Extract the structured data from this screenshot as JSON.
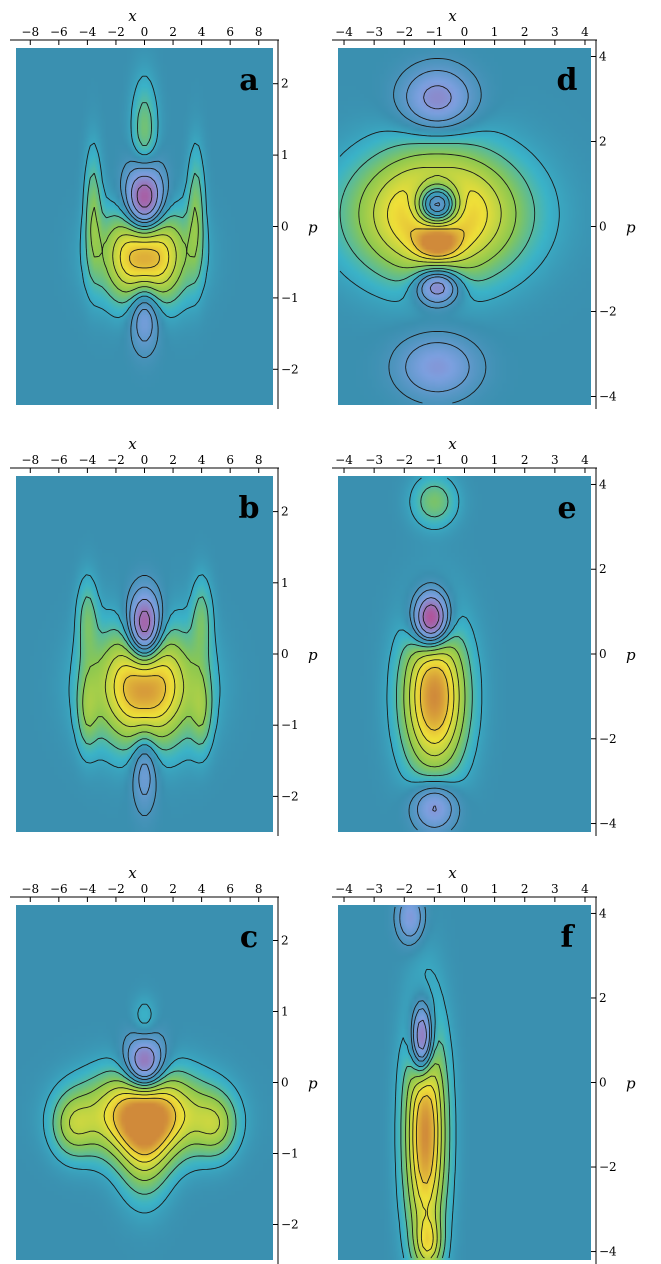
{
  "colors": {
    "background_field": "#3a90b0",
    "negative_field": "#7da0e0",
    "positive_low": "#3ab3c9",
    "positive_mid": "#8cc850",
    "positive_high": "#f0e038",
    "peak_orange": "#d08a3a",
    "negative_deep": "#c8307a",
    "contour": "#1a1a1a"
  },
  "chart_data": [
    {
      "panel": "a",
      "type": "heatmap",
      "xlabel": "x",
      "ylabel": "p",
      "xlim": [
        -9,
        9
      ],
      "ylim": [
        -2.5,
        2.5
      ],
      "xticks": [
        -8,
        -6,
        -4,
        -2,
        0,
        2,
        4,
        6,
        8
      ],
      "yticks": [
        -2,
        -1,
        0,
        1,
        2
      ],
      "y_axis_side": "right",
      "blobs": [
        {
          "x": 0,
          "p": -0.4,
          "sx": 1.9,
          "sp": 0.45,
          "w": 1.0
        },
        {
          "x": 0,
          "p": 0.35,
          "sx": 0.9,
          "sp": 0.35,
          "w": -1.0
        },
        {
          "x": 0,
          "p": -1.2,
          "sx": 0.7,
          "sp": 0.35,
          "w": -0.45
        },
        {
          "x": 0,
          "p": 1.3,
          "sx": 0.6,
          "sp": 0.5,
          "w": 0.3
        },
        {
          "x": -3.6,
          "p": 0.2,
          "sx": 0.4,
          "sp": 0.6,
          "w": 0.3
        },
        {
          "x": 3.6,
          "p": 0.2,
          "sx": 0.4,
          "sp": 0.6,
          "w": 0.3
        }
      ]
    },
    {
      "panel": "b",
      "type": "heatmap",
      "xlabel": "x",
      "ylabel": "p",
      "xlim": [
        -9,
        9
      ],
      "ylim": [
        -2.5,
        2.5
      ],
      "xticks": [
        -8,
        -6,
        -4,
        -2,
        0,
        2,
        4,
        6,
        8
      ],
      "yticks": [
        -2,
        -1,
        0,
        1,
        2
      ],
      "y_axis_side": "right",
      "blobs": [
        {
          "x": 0,
          "p": -0.45,
          "sx": 2.3,
          "sp": 0.55,
          "w": 1.0
        },
        {
          "x": 0,
          "p": 0.35,
          "sx": 0.8,
          "sp": 0.35,
          "w": -1.0
        },
        {
          "x": 0,
          "p": -1.6,
          "sx": 0.6,
          "sp": 0.4,
          "w": -0.35
        },
        {
          "x": -4,
          "p": 0.5,
          "sx": 0.5,
          "sp": 0.4,
          "w": 0.25
        },
        {
          "x": 4,
          "p": 0.5,
          "sx": 0.5,
          "sp": 0.4,
          "w": 0.25
        },
        {
          "x": -4,
          "p": -0.8,
          "sx": 0.5,
          "sp": 0.4,
          "w": 0.25
        },
        {
          "x": 4,
          "p": -0.8,
          "sx": 0.5,
          "sp": 0.4,
          "w": 0.25
        }
      ]
    },
    {
      "panel": "c",
      "type": "heatmap",
      "xlabel": "x",
      "ylabel": "p",
      "xlim": [
        -9,
        9
      ],
      "ylim": [
        -2.5,
        2.5
      ],
      "xticks": [
        -8,
        -6,
        -4,
        -2,
        0,
        2,
        4,
        6,
        8
      ],
      "yticks": [
        -2,
        -1,
        0,
        1,
        2
      ],
      "y_axis_side": "right",
      "blobs": [
        {
          "x": 0,
          "p": -0.45,
          "sx": 2.8,
          "sp": 0.4,
          "w": 1.0
        },
        {
          "x": 0,
          "p": 0.25,
          "sx": 0.9,
          "sp": 0.3,
          "w": -0.8
        },
        {
          "x": 0,
          "p": -0.9,
          "sx": 1.2,
          "sp": 0.5,
          "w": 0.45
        },
        {
          "x": -5,
          "p": -0.6,
          "sx": 1.0,
          "sp": 0.3,
          "w": 0.35
        },
        {
          "x": 5,
          "p": -0.6,
          "sx": 1.0,
          "sp": 0.3,
          "w": 0.35
        },
        {
          "x": 0,
          "p": 0.8,
          "sx": 0.6,
          "sp": 0.25,
          "w": 0.2
        }
      ]
    },
    {
      "panel": "d",
      "type": "heatmap",
      "xlabel": "x",
      "ylabel": "p",
      "xlim": [
        -4.2,
        4.2
      ],
      "ylim": [
        -4.2,
        4.2
      ],
      "xticks": [
        -4,
        -3,
        -2,
        -1,
        0,
        1,
        2,
        3,
        4
      ],
      "yticks": [
        -4,
        -2,
        0,
        2,
        4
      ],
      "y_axis_side": "right",
      "blobs": [
        {
          "x": -0.9,
          "p": 0.3,
          "sx": 1.8,
          "sp": 1.0,
          "w": 1.0
        },
        {
          "x": -0.9,
          "p": 0.5,
          "sx": 0.5,
          "sp": 0.35,
          "w": -1.2
        },
        {
          "x": -0.9,
          "p": -1.4,
          "sx": 0.5,
          "sp": 0.3,
          "w": -0.7
        },
        {
          "x": -0.9,
          "p": -0.4,
          "sx": 0.45,
          "sp": 0.25,
          "w": 0.5
        },
        {
          "x": -0.9,
          "p": 3.0,
          "sx": 0.8,
          "sp": 0.5,
          "w": -0.5
        },
        {
          "x": -0.9,
          "p": -3.3,
          "sx": 0.9,
          "sp": 0.5,
          "w": -0.4
        }
      ]
    },
    {
      "panel": "e",
      "type": "heatmap",
      "xlabel": "x",
      "ylabel": "p",
      "xlim": [
        -4.2,
        4.2
      ],
      "ylim": [
        -4.2,
        4.2
      ],
      "xticks": [
        -4,
        -3,
        -2,
        -1,
        0,
        1,
        2,
        3,
        4
      ],
      "yticks": [
        -4,
        -2,
        0,
        2,
        4
      ],
      "y_axis_side": "right",
      "blobs": [
        {
          "x": -1.0,
          "p": -1.0,
          "sx": 0.7,
          "sp": 1.2,
          "w": 1.0
        },
        {
          "x": -1.1,
          "p": 0.8,
          "sx": 0.4,
          "sp": 0.45,
          "w": -1.1
        },
        {
          "x": -1.0,
          "p": -3.6,
          "sx": 0.5,
          "sp": 0.4,
          "w": -0.5
        },
        {
          "x": -1.0,
          "p": 3.6,
          "sx": 0.5,
          "sp": 0.4,
          "w": 0.3
        }
      ]
    },
    {
      "panel": "f",
      "type": "heatmap",
      "xlabel": "x",
      "ylabel": "p",
      "xlim": [
        -4.2,
        4.2
      ],
      "ylim": [
        -4.2,
        4.2
      ],
      "xticks": [
        -4,
        -3,
        -2,
        -1,
        0,
        1,
        2,
        3,
        4
      ],
      "yticks": [
        -4,
        -2,
        0,
        2,
        4
      ],
      "y_axis_side": "right",
      "blobs": [
        {
          "x": -1.3,
          "p": -1.2,
          "sx": 0.45,
          "sp": 1.8,
          "w": 1.0
        },
        {
          "x": -1.4,
          "p": 1.0,
          "sx": 0.25,
          "sp": 0.6,
          "w": -1.0
        },
        {
          "x": -1.8,
          "p": 3.9,
          "sx": 0.3,
          "sp": 0.4,
          "w": -0.4
        },
        {
          "x": -1.2,
          "p": -3.8,
          "sx": 0.3,
          "sp": 0.4,
          "w": 0.4
        }
      ]
    }
  ]
}
